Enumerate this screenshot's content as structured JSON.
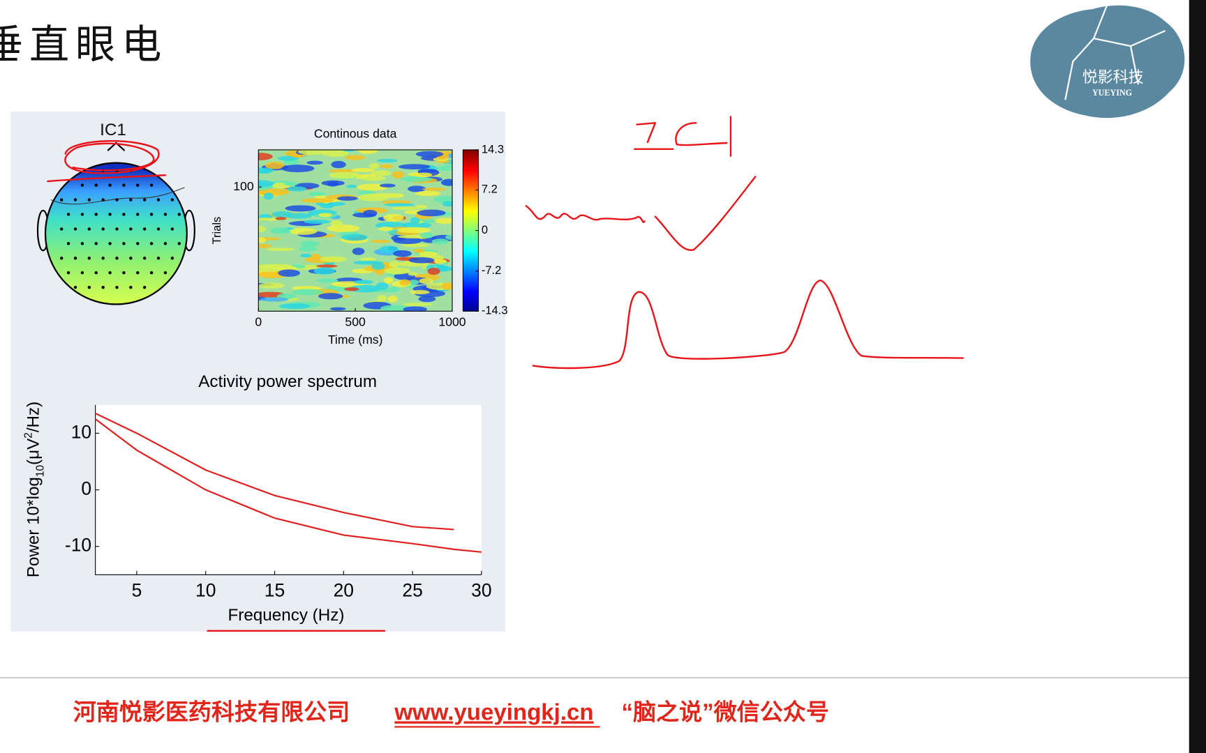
{
  "slide": {
    "title": "垂直眼电",
    "logo": {
      "name": "悦影科技",
      "sub": "YUEYING"
    },
    "figure": {
      "component": "IC1"
    },
    "footer": {
      "company": "河南悦影医药科技有限公司",
      "url": "www.yueyingkj.cn",
      "wechat": "“脑之说”微信公众号"
    }
  },
  "chart_data": [
    {
      "type": "heatmap",
      "title": "Continous data",
      "xlabel": "Time (ms)",
      "ylabel": "Trials",
      "xlim": [
        0,
        1000
      ],
      "xticks": [
        0,
        500,
        1000
      ],
      "ylim": [
        0,
        130
      ],
      "yticks": [
        100
      ],
      "clim": [
        -14.3,
        14.3
      ],
      "cticks": [
        14.3,
        7.2,
        0,
        -7.2,
        -14.3
      ]
    },
    {
      "type": "line",
      "title": "Activity power spectrum",
      "xlabel": "Frequency (Hz)",
      "ylabel": [
        "Power 10*log",
        "10",
        "(μV",
        "2",
        "/Hz)"
      ],
      "xlim": [
        2,
        30
      ],
      "xticks": [
        5,
        10,
        15,
        20,
        25,
        30
      ],
      "ylim": [
        -15,
        15
      ],
      "yticks": [
        10,
        0,
        -10
      ],
      "x": [
        2,
        5,
        10,
        15,
        20,
        25,
        28,
        30
      ],
      "series": [
        {
          "color": "#e02020",
          "values": [
            13.5,
            10,
            3.5,
            -1,
            -4,
            -6.5,
            -7,
            null
          ]
        },
        {
          "color": "#e02020",
          "values": [
            12.5,
            7,
            0,
            -5,
            -8,
            -9.5,
            -10.5,
            -11
          ]
        }
      ]
    }
  ]
}
